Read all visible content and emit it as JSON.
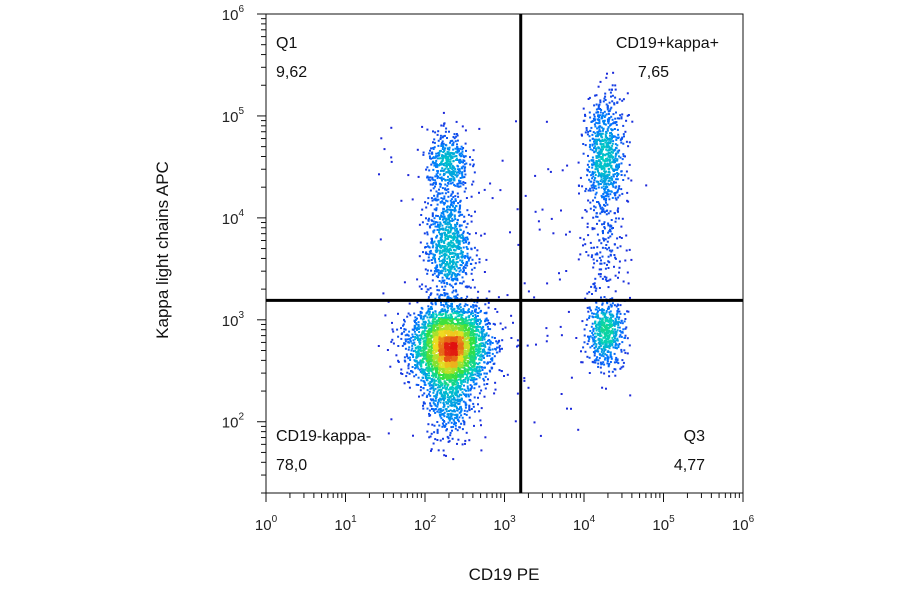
{
  "chart_data": {
    "type": "scatter",
    "title": "",
    "xlabel": "CD19 PE",
    "ylabel": "Kappa light chains APC",
    "x_scale": "log",
    "y_scale": "log",
    "xlim": [
      1,
      1000000
    ],
    "ylim": [
      20,
      1000000
    ],
    "x_ticks": [
      {
        "base": "10",
        "exp": "0"
      },
      {
        "base": "10",
        "exp": "1"
      },
      {
        "base": "10",
        "exp": "2"
      },
      {
        "base": "10",
        "exp": "3"
      },
      {
        "base": "10",
        "exp": "4"
      },
      {
        "base": "10",
        "exp": "5"
      },
      {
        "base": "10",
        "exp": "6"
      }
    ],
    "y_ticks": [
      {
        "base": "10",
        "exp": "2"
      },
      {
        "base": "10",
        "exp": "3"
      },
      {
        "base": "10",
        "exp": "4"
      },
      {
        "base": "10",
        "exp": "5"
      },
      {
        "base": "10",
        "exp": "6"
      }
    ],
    "gate": {
      "x": 1600,
      "y": 1550
    },
    "quadrants": [
      {
        "name": "Q1",
        "value": "9,62",
        "position": "top-left"
      },
      {
        "name": "CD19+kappa+",
        "value": "7,65",
        "position": "top-right"
      },
      {
        "name": "CD19-kappa-",
        "value": "78,0",
        "position": "bottom-left"
      },
      {
        "name": "Q3",
        "value": "4,77",
        "position": "bottom-right"
      }
    ],
    "populations": [
      {
        "cx": 200,
        "cy": 550,
        "sx": 0.24,
        "sy": 0.2,
        "n": 3200
      },
      {
        "cx": 200,
        "cy": 160,
        "sx": 0.14,
        "sy": 0.22,
        "n": 420
      },
      {
        "cx": 190,
        "cy": 5000,
        "sx": 0.14,
        "sy": 0.22,
        "n": 650
      },
      {
        "cx": 190,
        "cy": 35000,
        "sx": 0.13,
        "sy": 0.15,
        "n": 380
      },
      {
        "cx": 190,
        "cy": 14000,
        "sx": 0.13,
        "sy": 0.18,
        "n": 140
      },
      {
        "cx": 18000,
        "cy": 40000,
        "sx": 0.12,
        "sy": 0.3,
        "n": 750
      },
      {
        "cx": 18000,
        "cy": 5000,
        "sx": 0.13,
        "sy": 0.38,
        "n": 140
      },
      {
        "cx": 18000,
        "cy": 750,
        "sx": 0.12,
        "sy": 0.16,
        "n": 520
      }
    ],
    "grid": false,
    "legend": "none",
    "colors": {
      "low": "#1f1fd6",
      "mid": "#00d0c0",
      "green": "#30e040",
      "yellow": "#f0e020",
      "high": "#e01010"
    }
  }
}
